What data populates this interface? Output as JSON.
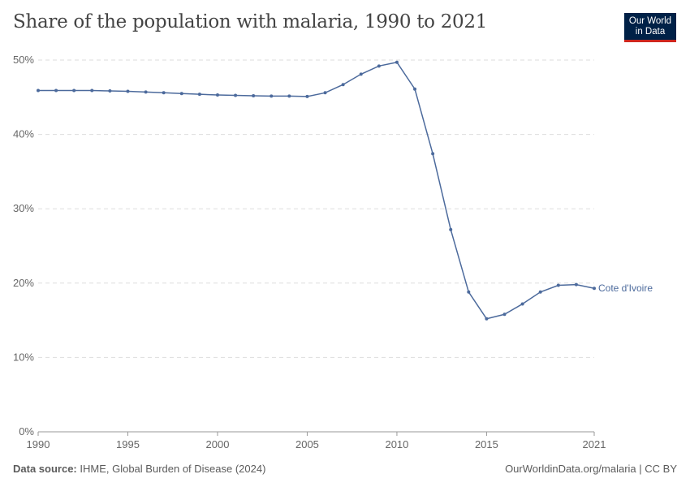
{
  "header": {
    "title": "Share of the population with malaria, 1990 to 2021",
    "logo_line1": "Our World",
    "logo_line2": "in Data"
  },
  "footer": {
    "source_label": "Data source:",
    "source": "IHME, Global Burden of Disease (2024)",
    "credit": "OurWorldinData.org/malaria | CC BY"
  },
  "colors": {
    "series": "#4c6a9c",
    "logo_bg": "#002147",
    "logo_accent": "#ce261e"
  },
  "chart_data": {
    "type": "line",
    "title": "Share of the population with malaria, 1990 to 2021",
    "xlim": [
      1990,
      2021
    ],
    "ylim": [
      0,
      50
    ],
    "x_ticks": [
      1990,
      1995,
      2000,
      2005,
      2010,
      2015,
      2021
    ],
    "y_ticks": [
      0,
      10,
      20,
      30,
      40,
      50
    ],
    "y_tick_labels": [
      "0%",
      "10%",
      "20%",
      "30%",
      "40%",
      "50%"
    ],
    "grid": "horizontal dashed",
    "legend": "inline-right",
    "series": [
      {
        "name": "Cote d'Ivoire",
        "x": [
          1990,
          1991,
          1992,
          1993,
          1994,
          1995,
          1996,
          1997,
          1998,
          1999,
          2000,
          2001,
          2002,
          2003,
          2004,
          2005,
          2006,
          2007,
          2008,
          2009,
          2010,
          2011,
          2012,
          2013,
          2014,
          2015,
          2016,
          2017,
          2018,
          2019,
          2020,
          2021
        ],
        "values": [
          45.9,
          45.9,
          45.9,
          45.9,
          45.85,
          45.8,
          45.7,
          45.6,
          45.5,
          45.4,
          45.3,
          45.25,
          45.2,
          45.15,
          45.15,
          45.1,
          45.6,
          46.7,
          48.1,
          49.2,
          49.7,
          46.1,
          37.4,
          27.2,
          18.8,
          15.2,
          15.8,
          17.2,
          18.8,
          19.7,
          19.8,
          19.3
        ]
      }
    ]
  }
}
